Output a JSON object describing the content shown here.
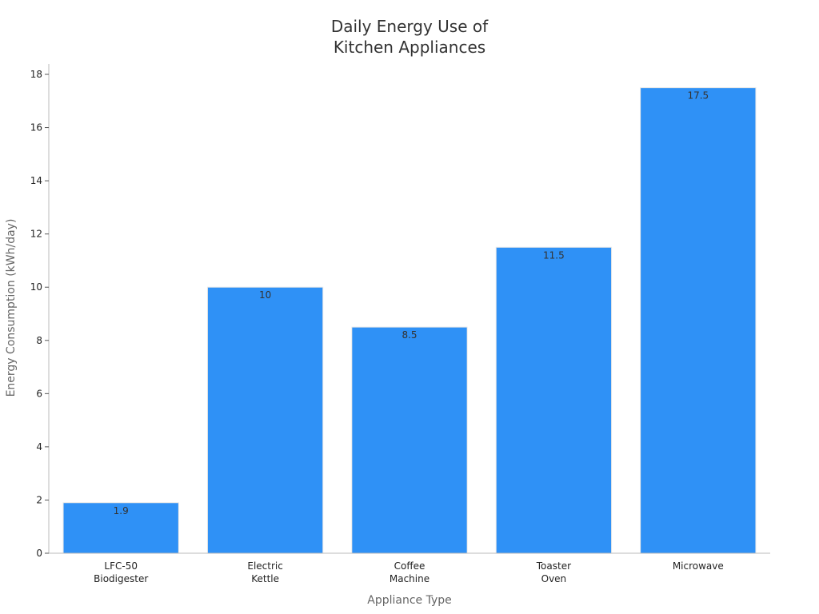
{
  "chart_data": {
    "type": "bar",
    "title_lines": [
      "Daily Energy Use of",
      "Kitchen Appliances"
    ],
    "xlabel": "Appliance Type",
    "ylabel": "Energy Consumption (kWh/day)",
    "categories": [
      [
        "LFC-50",
        "Biodigester"
      ],
      [
        "Electric",
        "Kettle"
      ],
      [
        "Coffee",
        "Machine"
      ],
      [
        "Toaster",
        "Oven"
      ],
      [
        "Microwave"
      ]
    ],
    "values": [
      1.9,
      10,
      8.5,
      11.5,
      17.5
    ],
    "value_labels": [
      "1.9",
      "10",
      "8.5",
      "11.5",
      "17.5"
    ],
    "ylim": [
      0,
      18
    ],
    "yticks": [
      0,
      2,
      4,
      6,
      8,
      10,
      12,
      14,
      16,
      18
    ],
    "grid": false,
    "legend": "none",
    "colors": {
      "bar": "#2f91f6",
      "bar_edge": "#e8e8e8",
      "axis": "#bbbbbb",
      "text": "#333333"
    }
  }
}
